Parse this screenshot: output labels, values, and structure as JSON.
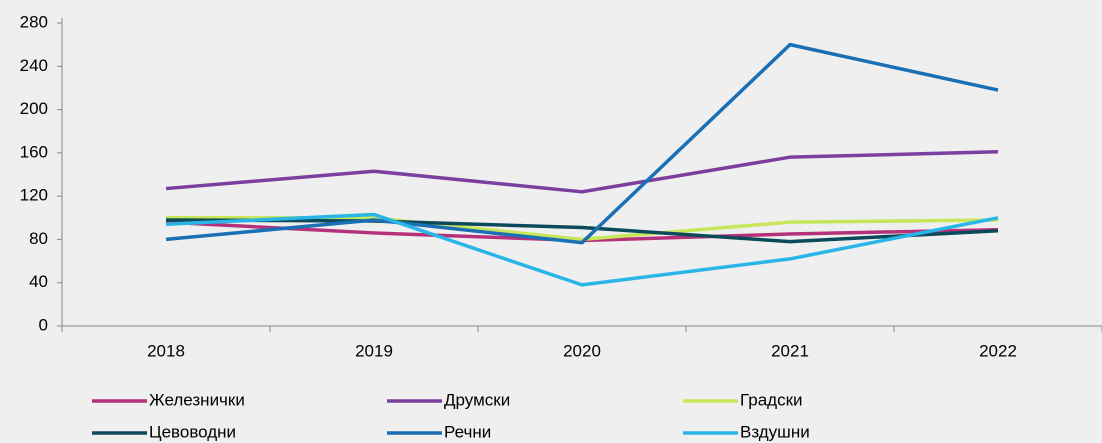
{
  "chart_data": {
    "type": "line",
    "categories": [
      "2018",
      "2019",
      "2020",
      "2021",
      "2022"
    ],
    "series": [
      {
        "name": "Железнички",
        "color": "#b5317a",
        "values": [
          96,
          86,
          79,
          85,
          89
        ]
      },
      {
        "name": "Друмски",
        "color": "#7b3fa0",
        "values": [
          127,
          143,
          124,
          156,
          161
        ]
      },
      {
        "name": "Градски",
        "color": "#c8e65a",
        "values": [
          100,
          100,
          80,
          96,
          98
        ]
      },
      {
        "name": "Цевоводни",
        "color": "#0b4a5a",
        "values": [
          98,
          97,
          91,
          78,
          88
        ]
      },
      {
        "name": "Речни",
        "color": "#1a6fb5",
        "values": [
          80,
          98,
          77,
          260,
          218
        ]
      },
      {
        "name": "Вздушни",
        "color": "#29b5e8",
        "values": [
          94,
          103,
          38,
          62,
          100
        ]
      }
    ],
    "ylim": [
      0,
      280
    ],
    "yticks": [
      0,
      40,
      80,
      120,
      160,
      200,
      240,
      280
    ],
    "grid": false
  }
}
